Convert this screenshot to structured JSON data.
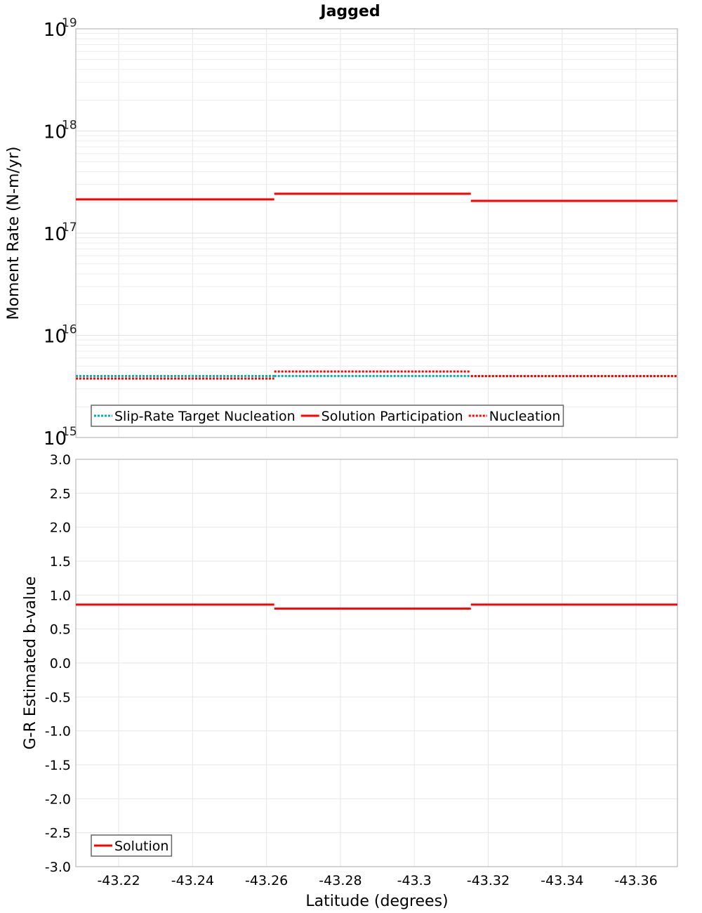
{
  "title": "Jagged",
  "chart_data": [
    {
      "type": "line",
      "title": "Jagged",
      "xlabel": "Latitude (degrees)",
      "ylabel": "Moment Rate (N-m/yr)",
      "yscale": "log",
      "ylim": [
        1000000000000000.0,
        1e+19
      ],
      "xlim": [
        -43.2084,
        -43.3712
      ],
      "x_ticks": [
        "-43.22",
        "-43.24",
        "-43.26",
        "-43.28",
        "-43.3",
        "-43.32",
        "-43.34",
        "-43.36"
      ],
      "y_ticks": [
        {
          "base": "10",
          "exp": "19"
        },
        {
          "base": "10",
          "exp": "18"
        },
        {
          "base": "10",
          "exp": "17"
        },
        {
          "base": "10",
          "exp": "16"
        },
        {
          "base": "10",
          "exp": "15"
        }
      ],
      "grid": true,
      "legend_position": "bottom-left",
      "series": [
        {
          "name": "Slip-Rate Target Nucleation",
          "color": "#00b0b0",
          "style": "dotted",
          "segments": [
            {
              "x0": -43.2084,
              "x1": -43.2621,
              "y": 4000000000000000.0
            },
            {
              "x0": -43.2621,
              "x1": -43.3153,
              "y": 4000000000000000.0
            },
            {
              "x0": -43.3153,
              "x1": -43.3712,
              "y": 4000000000000000.0
            }
          ]
        },
        {
          "name": "Solution Participation",
          "color": "#ff0000",
          "style": "solid",
          "segments": [
            {
              "x0": -43.2084,
              "x1": -43.2621,
              "y": 2.14e+17
            },
            {
              "x0": -43.2621,
              "x1": -43.3153,
              "y": 2.43e+17
            },
            {
              "x0": -43.3153,
              "x1": -43.3712,
              "y": 2.07e+17
            }
          ]
        },
        {
          "name": "Nucleation",
          "color": "#ff0000",
          "style": "dotted",
          "segments": [
            {
              "x0": -43.2084,
              "x1": -43.2621,
              "y": 3780000000000000.0
            },
            {
              "x0": -43.2621,
              "x1": -43.3153,
              "y": 4430000000000000.0
            },
            {
              "x0": -43.3153,
              "x1": -43.3712,
              "y": 3990000000000000.0
            }
          ]
        }
      ]
    },
    {
      "type": "line",
      "title": "",
      "xlabel": "Latitude (degrees)",
      "ylabel": "G-R Estimated b-value",
      "ylim": [
        -3.0,
        3.0
      ],
      "xlim": [
        -43.2084,
        -43.3712
      ],
      "x_ticks": [
        "-43.22",
        "-43.24",
        "-43.26",
        "-43.28",
        "-43.3",
        "-43.32",
        "-43.34",
        "-43.36"
      ],
      "y_ticks": [
        "3.0",
        "2.5",
        "2.0",
        "1.5",
        "1.0",
        "0.5",
        "0.0",
        "-0.5",
        "-1.0",
        "-1.5",
        "-2.0",
        "-2.5",
        "-3.0"
      ],
      "grid": true,
      "legend_position": "bottom-left",
      "series": [
        {
          "name": "Solution",
          "color": "#ff0000",
          "style": "solid",
          "segments": [
            {
              "x0": -43.2084,
              "x1": -43.2621,
              "y": 0.86
            },
            {
              "x0": -43.2621,
              "x1": -43.3153,
              "y": 0.8
            },
            {
              "x0": -43.3153,
              "x1": -43.3712,
              "y": 0.86
            }
          ]
        }
      ]
    }
  ]
}
